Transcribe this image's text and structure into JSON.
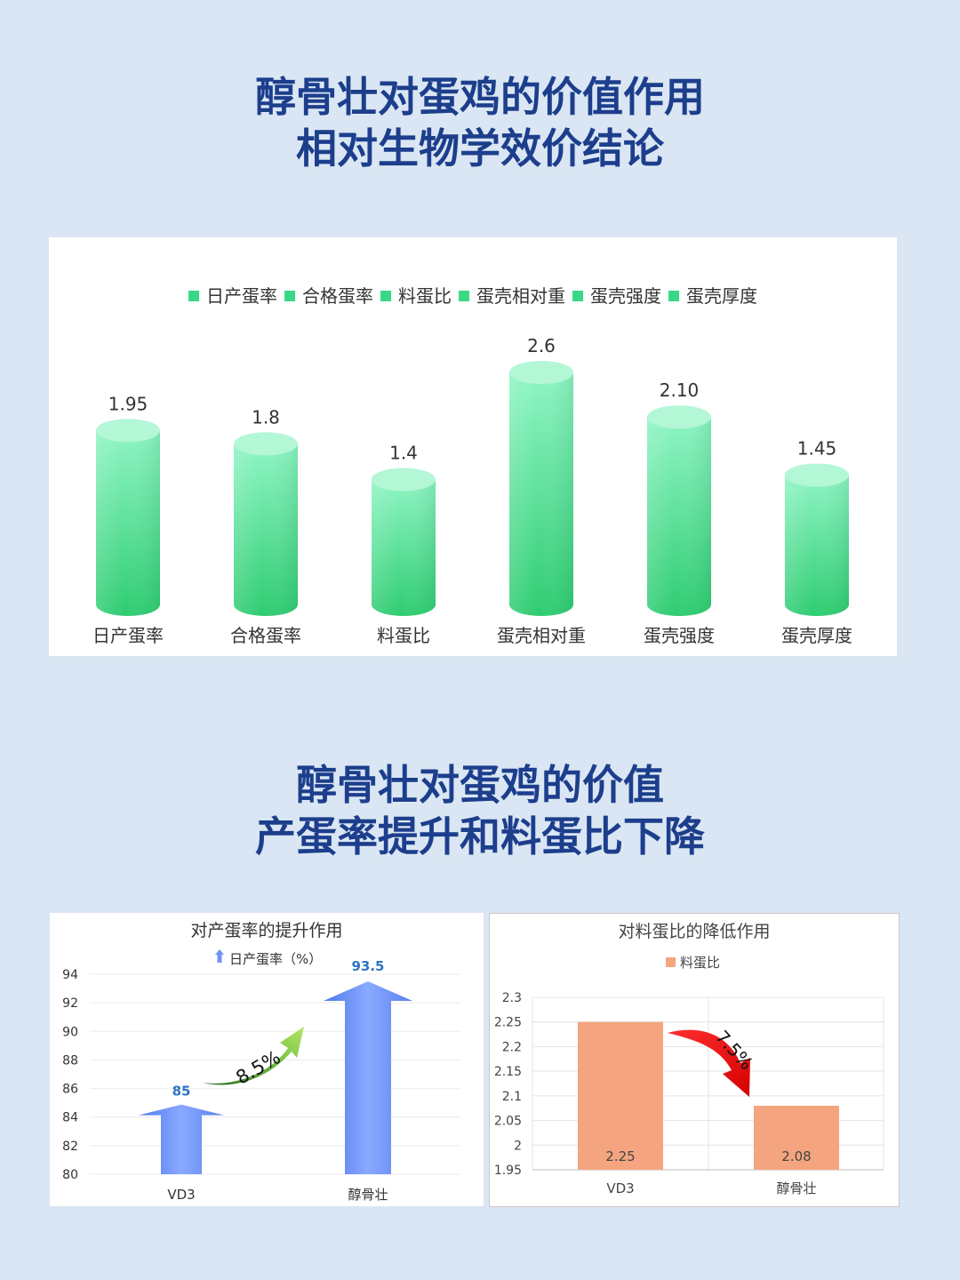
{
  "section1": {
    "title_line1": "醇骨壮对蛋鸡的价值作用",
    "title_line2": "相对生物学效价结论"
  },
  "section2": {
    "title_line1": "醇骨壮对蛋鸡的价值",
    "title_line2": "产蛋率提升和料蛋比下降"
  },
  "chart_data": [
    {
      "type": "bar",
      "style": "cylinder",
      "categories": [
        "日产蛋率",
        "合格蛋率",
        "料蛋比",
        "蛋壳相对重",
        "蛋壳强度",
        "蛋壳厚度"
      ],
      "values": [
        1.95,
        1.8,
        1.4,
        2.6,
        2.1,
        1.45
      ],
      "value_labels": [
        "1.95",
        "1.8",
        "1.4",
        "2.6",
        "2.10",
        "1.45"
      ],
      "legend": [
        "日产蛋率",
        "合格蛋率",
        "料蛋比",
        "蛋壳相对重",
        "蛋壳强度",
        "蛋壳厚度"
      ],
      "legend_position": "top",
      "colors": [
        "#8ef5c4",
        "#2ecc71"
      ]
    },
    {
      "type": "bar",
      "style": "arrow",
      "title": "对产蛋率的提升作用",
      "categories": [
        "VD3",
        "醇骨壮"
      ],
      "series": [
        {
          "name": "日产蛋率（%）",
          "values": [
            85,
            93.5
          ]
        }
      ],
      "value_labels": [
        "85",
        "93.5"
      ],
      "ylim": [
        80,
        94
      ],
      "yticks": [
        80,
        82,
        84,
        86,
        88,
        90,
        92,
        94
      ],
      "annotation": "8.5%",
      "legend_position": "top",
      "grid": true,
      "colors": [
        "#6f93f7",
        "#2d74c4",
        "#3f9130"
      ]
    },
    {
      "type": "bar",
      "title": "对料蛋比的降低作用",
      "categories": [
        "VD3",
        "醇骨壮"
      ],
      "series": [
        {
          "name": "料蛋比",
          "values": [
            2.25,
            2.08
          ]
        }
      ],
      "value_labels": [
        "2.25",
        "2.08"
      ],
      "ylim": [
        1.95,
        2.3
      ],
      "yticks": [
        "1.95",
        "2",
        "2.05",
        "2.1",
        "2.15",
        "2.2",
        "2.25",
        "2.3"
      ],
      "annotation": "7.5%",
      "legend_position": "top",
      "grid": true,
      "colors": [
        "#f4a57f",
        "#ee1111"
      ]
    }
  ]
}
